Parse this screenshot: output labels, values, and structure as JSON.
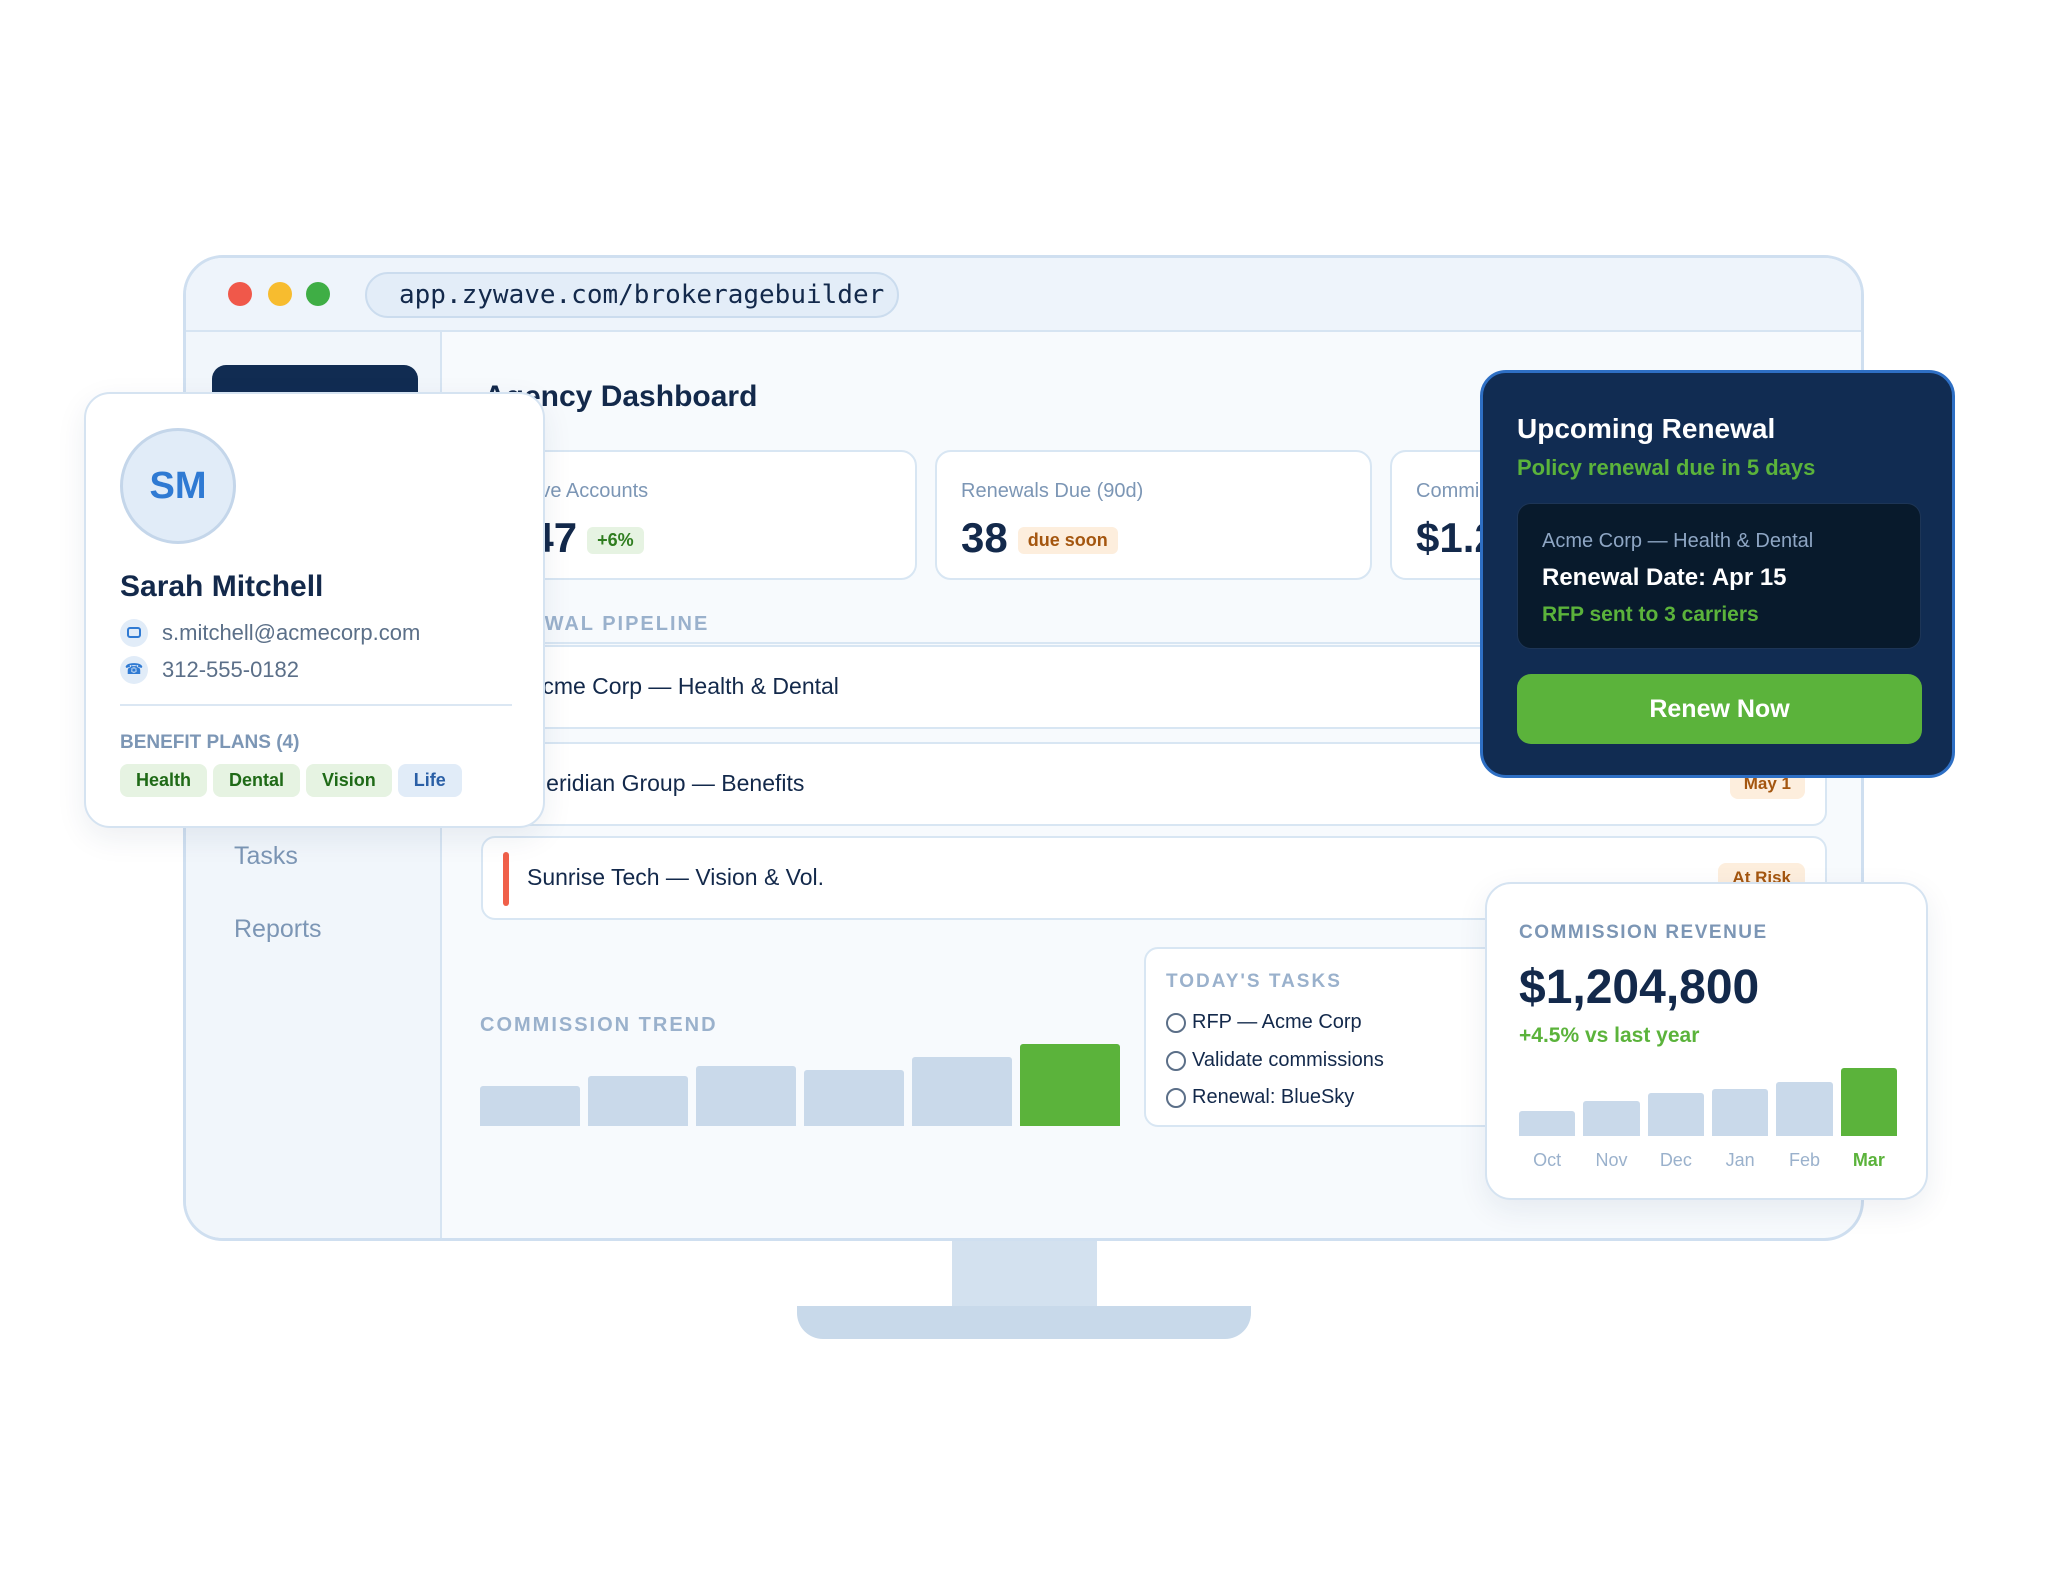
{
  "browser": {
    "url": "app.zywave.com/brokeragebuilder"
  },
  "sidebar": {
    "items": [
      {
        "label": "Tasks"
      },
      {
        "label": "Reports"
      }
    ]
  },
  "main": {
    "title": "Agency Dashboard",
    "kpis": [
      {
        "label": "Active Accounts",
        "value": "247",
        "badge": "+6%"
      },
      {
        "label": "Renewals Due (90d)",
        "value": "38",
        "badge": "due soon"
      },
      {
        "label": "Commission",
        "value": "$1.2M"
      }
    ],
    "pipeline": {
      "title": "RENEWAL PIPELINE",
      "rows": [
        {
          "name": "Acme Corp — Health & Dental",
          "color": "#5bb33b"
        },
        {
          "name": "Meridian Group — Benefits",
          "badge": "May 1",
          "color": "#f2a33a"
        },
        {
          "name": "Sunrise Tech — Vision & Vol.",
          "badge": "At Risk",
          "color": "#f0604a"
        }
      ]
    },
    "trend": {
      "title": "COMMISSION TREND"
    },
    "tasks": {
      "title": "TODAY'S TASKS",
      "items": [
        "RFP — Acme Corp",
        "Validate commissions",
        "Renewal: BlueSky"
      ]
    }
  },
  "profile": {
    "initials": "SM",
    "name": "Sarah Mitchell",
    "email": "s.mitchell@acmecorp.com",
    "phone": "312-555-0182",
    "plans_label": "BENEFIT PLANS (4)",
    "plans": [
      "Health",
      "Dental",
      "Vision",
      "Life"
    ]
  },
  "renewal": {
    "title": "Upcoming Renewal",
    "subtitle": "Policy renewal due in 5 days",
    "account": "Acme Corp — Health & Dental",
    "date": "Renewal Date: Apr 15",
    "status": "RFP sent to 3 carriers",
    "button": "Renew Now"
  },
  "revenue": {
    "title": "COMMISSION REVENUE",
    "value": "$1,204,800",
    "change": "+4.5% vs last year"
  },
  "chart_data": [
    {
      "type": "bar",
      "title": "COMMISSION TREND",
      "values": [
        30,
        38,
        45,
        42,
        52,
        62
      ],
      "highlight_last": true
    },
    {
      "type": "bar",
      "title": "COMMISSION REVENUE",
      "categories": [
        "Oct",
        "Nov",
        "Dec",
        "Jan",
        "Feb",
        "Mar"
      ],
      "values": [
        19,
        27,
        33,
        36,
        41,
        52
      ],
      "highlight_last": true
    }
  ],
  "colors": {
    "navy": "#112c52",
    "green": "#5bb33b",
    "bar": "#c9d9ea"
  }
}
